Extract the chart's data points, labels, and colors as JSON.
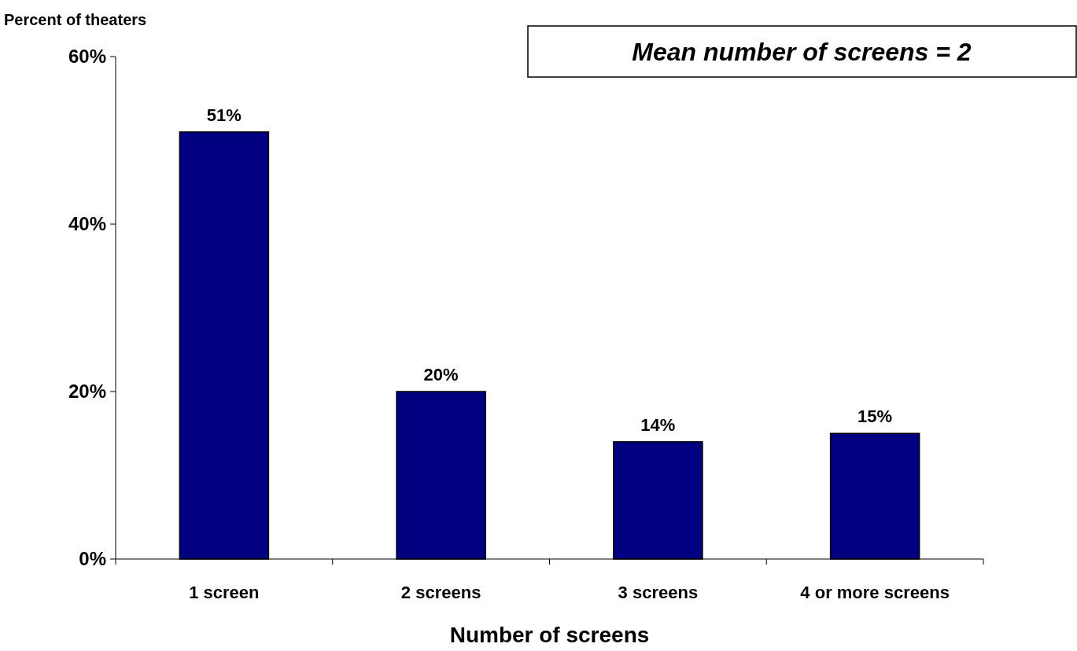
{
  "chart_data": {
    "type": "bar",
    "ylabel": "Percent of theaters",
    "xlabel": "Number of screens",
    "categories": [
      "1 screen",
      "2 screens",
      "3 screens",
      "4 or more screens"
    ],
    "values": [
      51,
      20,
      14,
      15
    ],
    "value_labels": [
      "51%",
      "20%",
      "14%",
      "15%"
    ],
    "color": "#000080",
    "ylim": [
      0,
      60
    ],
    "yticks": [
      {
        "value": 0,
        "label": "0%"
      },
      {
        "value": 20,
        "label": "20%"
      },
      {
        "value": 40,
        "label": "40%"
      },
      {
        "value": 60,
        "label": "60%"
      }
    ],
    "grid": false,
    "annotations": [
      "Mean number of screens = 2"
    ]
  }
}
